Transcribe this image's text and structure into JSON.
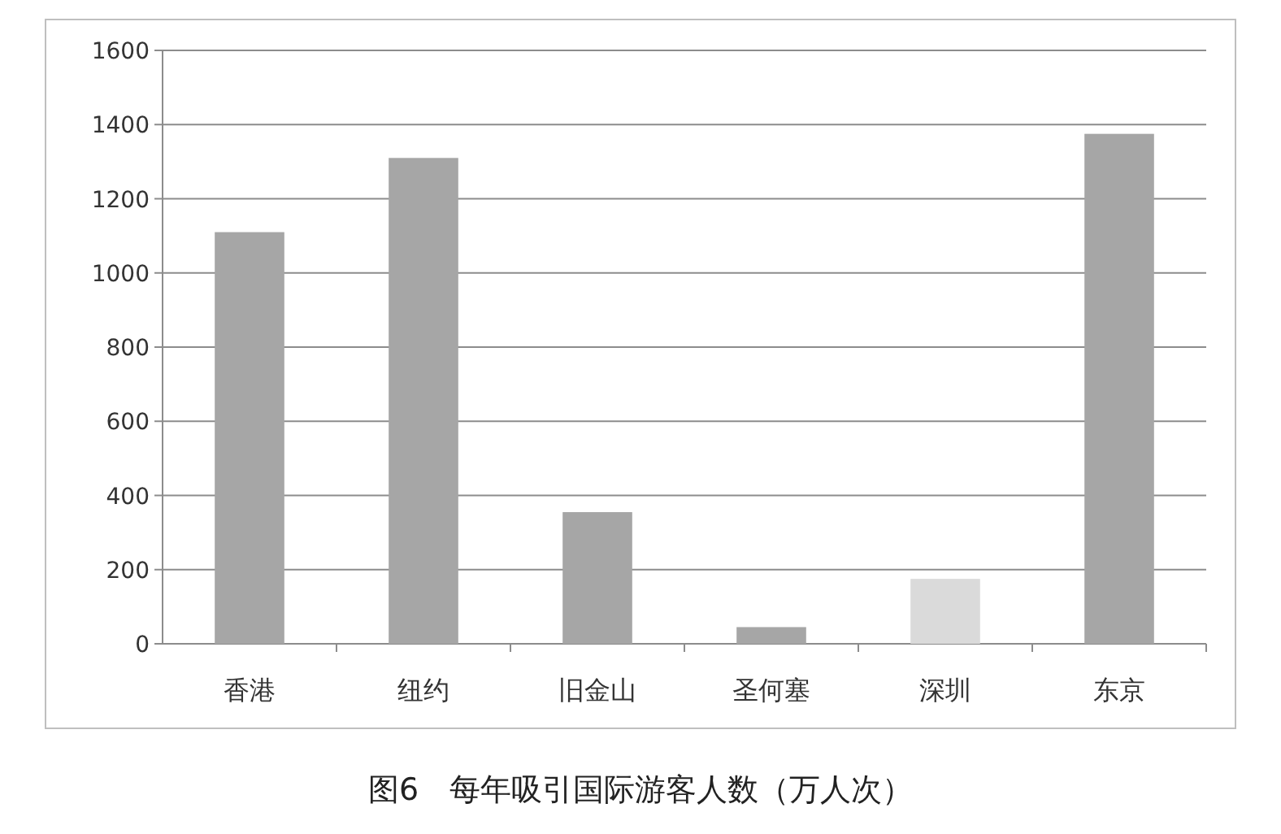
{
  "chart_data": {
    "type": "bar",
    "title": "图6　每年吸引国际游客人数（万人次）",
    "categories": [
      "香港",
      "纽约",
      "旧金山",
      "圣何塞",
      "深圳",
      "东京"
    ],
    "values": [
      1110,
      1310,
      355,
      45,
      175,
      1375
    ],
    "colors": [
      "#a6a6a6",
      "#a6a6a6",
      "#a6a6a6",
      "#a6a6a6",
      "#dadada",
      "#a6a6a6"
    ],
    "ylim": [
      0,
      1600
    ],
    "yticks": [
      0,
      200,
      400,
      600,
      800,
      1000,
      1200,
      1400,
      1600
    ],
    "grid": "y"
  }
}
